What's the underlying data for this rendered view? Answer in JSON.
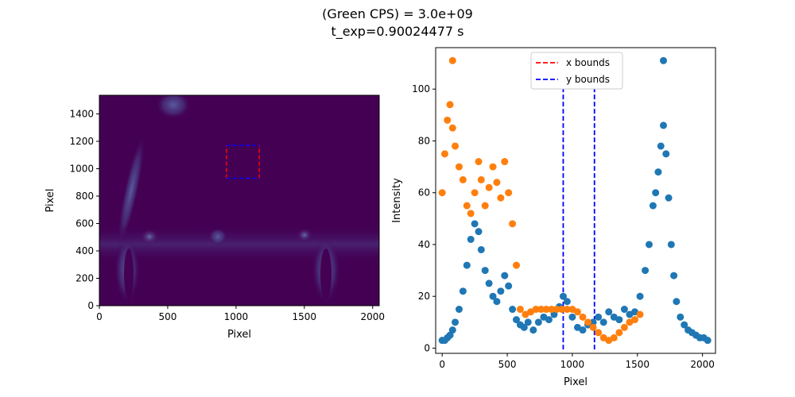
{
  "figure": {
    "title_line1": "(Green CPS) = 3.0e+09",
    "title_line2": "t_exp=0.90024477 s"
  },
  "chart_data": [
    {
      "type": "heatmap",
      "xlabel": "Pixel",
      "ylabel": "Pixel",
      "xlim": [
        0,
        2048
      ],
      "ylim": [
        0,
        1536
      ],
      "xticks": [
        0,
        500,
        1000,
        1500,
        2000
      ],
      "yticks": [
        0,
        200,
        400,
        600,
        800,
        1000,
        1200,
        1400
      ],
      "colormap": "viridis",
      "background_color": "#440154",
      "roi": {
        "x_bounds": [
          930,
          1170
        ],
        "y_bounds": [
          930,
          1170
        ],
        "x_bounds_color": "#ff0000",
        "y_bounds_color": "#0000ff"
      }
    },
    {
      "type": "scatter",
      "xlabel": "Pixel",
      "ylabel": "Intensity",
      "xlim": [
        -50,
        2100
      ],
      "ylim": [
        -2,
        116
      ],
      "xticks": [
        0,
        500,
        1000,
        1500,
        2000
      ],
      "yticks": [
        0,
        20,
        40,
        60,
        80,
        100
      ],
      "legend_position": "top-center",
      "legend": [
        {
          "label": "x bounds",
          "color": "#ff0000",
          "style": "dashed"
        },
        {
          "label": "y bounds",
          "color": "#0000ff",
          "style": "dashed"
        }
      ],
      "vlines": [
        930,
        1170
      ],
      "series": [
        {
          "color": "#1f77b4",
          "x": [
            0,
            20,
            40,
            60,
            80,
            100,
            130,
            160,
            190,
            220,
            250,
            280,
            300,
            330,
            360,
            390,
            420,
            450,
            480,
            510,
            540,
            570,
            600,
            630,
            660,
            700,
            740,
            780,
            820,
            860,
            900,
            930,
            960,
            1000,
            1040,
            1080,
            1120,
            1160,
            1200,
            1240,
            1280,
            1320,
            1360,
            1400,
            1440,
            1480,
            1520,
            1560,
            1590,
            1620,
            1640,
            1660,
            1680,
            1700,
            1720,
            1740,
            1760,
            1780,
            1800,
            1830,
            1860,
            1890,
            1920,
            1950,
            1980,
            2010,
            2040
          ],
          "y": [
            3,
            3,
            4,
            5,
            7,
            10,
            15,
            22,
            32,
            42,
            48,
            45,
            38,
            30,
            25,
            20,
            18,
            22,
            28,
            24,
            15,
            11,
            9,
            8,
            10,
            7,
            10,
            12,
            11,
            13,
            16,
            20,
            18,
            12,
            8,
            7,
            9,
            10,
            12,
            10,
            14,
            12,
            11,
            15,
            13,
            14,
            20,
            30,
            40,
            55,
            60,
            68,
            78,
            86,
            75,
            58,
            40,
            28,
            18,
            12,
            9,
            7,
            6,
            5,
            4,
            4,
            3
          ]
        },
        {
          "color": "#ff7f0e",
          "x": [
            0,
            20,
            40,
            60,
            80,
            100,
            130,
            160,
            190,
            220,
            250,
            280,
            300,
            330,
            360,
            390,
            420,
            450,
            480,
            510,
            540,
            570,
            600,
            640,
            680,
            720,
            760,
            800,
            840,
            880,
            920,
            960,
            1000,
            1040,
            1080,
            1120,
            1160,
            1200,
            1240,
            1280,
            1320,
            1360,
            1400,
            1440,
            1480,
            1520
          ],
          "y": [
            60,
            75,
            88,
            94,
            85,
            78,
            70,
            65,
            55,
            52,
            60,
            72,
            65,
            55,
            62,
            70,
            64,
            58,
            72,
            60,
            48,
            32,
            15,
            13,
            14,
            15,
            15,
            15,
            15,
            15,
            15,
            15,
            15,
            14,
            12,
            10,
            8,
            6,
            4,
            3,
            4,
            6,
            8,
            10,
            11,
            13
          ]
        }
      ],
      "annotations": [
        {
          "x": 80,
          "y": 111,
          "color": "#ff7f0e"
        },
        {
          "x": 1700,
          "y": 111,
          "color": "#1f77b4"
        }
      ]
    }
  ]
}
